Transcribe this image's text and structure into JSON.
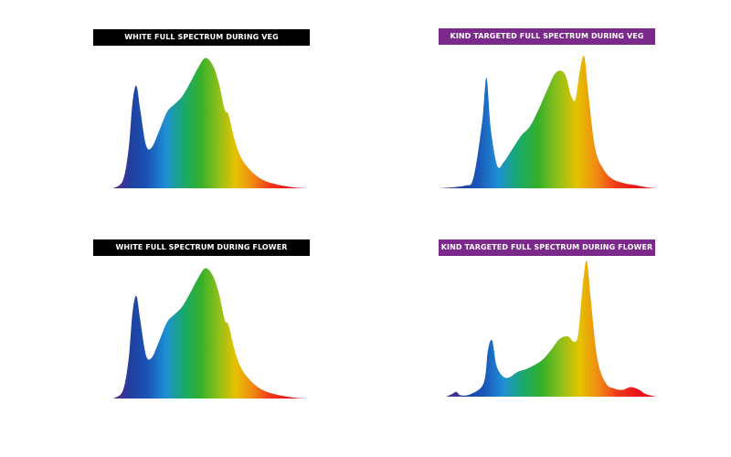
{
  "colors": {
    "white_bar": "#000000",
    "kind_bar": "#7b2a8c",
    "spectrum": [
      "#5a2a8a",
      "#1f3f9e",
      "#1a56b8",
      "#1e8fd6",
      "#19a86e",
      "#33b02a",
      "#8cbf1a",
      "#e6c200",
      "#f08a12",
      "#f03818",
      "#e8141c",
      "#e8141c"
    ]
  },
  "chart_data": [
    {
      "type": "area",
      "title": "WHITE FULL SPECTRUM DURING VEG",
      "title_color": "#000000",
      "x": [
        0,
        0.05,
        0.08,
        0.1,
        0.12,
        0.14,
        0.17,
        0.2,
        0.24,
        0.28,
        0.32,
        0.36,
        0.4,
        0.44,
        0.48,
        0.52,
        0.55,
        0.58,
        0.6,
        0.63,
        0.66,
        0.7,
        0.75,
        0.8,
        0.85,
        0.9,
        0.95,
        1.0
      ],
      "y": [
        0,
        0.06,
        0.3,
        0.65,
        0.78,
        0.6,
        0.33,
        0.31,
        0.44,
        0.58,
        0.64,
        0.7,
        0.8,
        0.91,
        0.99,
        0.93,
        0.8,
        0.6,
        0.56,
        0.38,
        0.25,
        0.16,
        0.09,
        0.05,
        0.03,
        0.015,
        0.005,
        0
      ]
    },
    {
      "type": "area",
      "title": "KIND TARGETED FULL SPECTRUM DURING VEG",
      "title_color": "#7b2a8c",
      "x": [
        0,
        0.12,
        0.16,
        0.2,
        0.22,
        0.24,
        0.27,
        0.3,
        0.34,
        0.38,
        0.42,
        0.46,
        0.5,
        0.54,
        0.58,
        0.61,
        0.63,
        0.65,
        0.67,
        0.69,
        0.72,
        0.76,
        0.8,
        0.85,
        0.9,
        0.95,
        1.0
      ],
      "y": [
        0,
        0.02,
        0.08,
        0.5,
        0.84,
        0.45,
        0.17,
        0.2,
        0.3,
        0.4,
        0.47,
        0.6,
        0.75,
        0.88,
        0.87,
        0.7,
        0.68,
        0.9,
        1.0,
        0.7,
        0.3,
        0.14,
        0.07,
        0.04,
        0.025,
        0.01,
        0
      ]
    },
    {
      "type": "area",
      "title": "WHITE FULL SPECTRUM DURING FLOWER",
      "title_color": "#000000",
      "x": [
        0,
        0.05,
        0.08,
        0.1,
        0.12,
        0.14,
        0.17,
        0.2,
        0.24,
        0.28,
        0.32,
        0.36,
        0.4,
        0.44,
        0.48,
        0.52,
        0.55,
        0.58,
        0.6,
        0.63,
        0.66,
        0.7,
        0.75,
        0.8,
        0.85,
        0.9,
        0.95,
        1.0
      ],
      "y": [
        0,
        0.06,
        0.3,
        0.65,
        0.78,
        0.6,
        0.33,
        0.31,
        0.44,
        0.58,
        0.64,
        0.7,
        0.8,
        0.91,
        0.99,
        0.93,
        0.8,
        0.6,
        0.56,
        0.38,
        0.25,
        0.16,
        0.09,
        0.05,
        0.03,
        0.015,
        0.005,
        0
      ]
    },
    {
      "type": "area",
      "title": "KIND TARGETED FULL SPECTRUM DURING FLOWER",
      "title_color": "#7b2a8c",
      "x": [
        0,
        0.03,
        0.05,
        0.07,
        0.12,
        0.18,
        0.2,
        0.22,
        0.24,
        0.27,
        0.3,
        0.34,
        0.38,
        0.42,
        0.46,
        0.5,
        0.54,
        0.58,
        0.61,
        0.63,
        0.65,
        0.67,
        0.69,
        0.72,
        0.76,
        0.8,
        0.84,
        0.88,
        0.92,
        0.95,
        1.0
      ],
      "y": [
        0,
        0.02,
        0.035,
        0.01,
        0.02,
        0.1,
        0.34,
        0.41,
        0.23,
        0.15,
        0.14,
        0.18,
        0.2,
        0.23,
        0.27,
        0.34,
        0.42,
        0.44,
        0.4,
        0.46,
        0.8,
        0.99,
        0.7,
        0.28,
        0.1,
        0.06,
        0.05,
        0.07,
        0.05,
        0.02,
        0
      ]
    }
  ]
}
